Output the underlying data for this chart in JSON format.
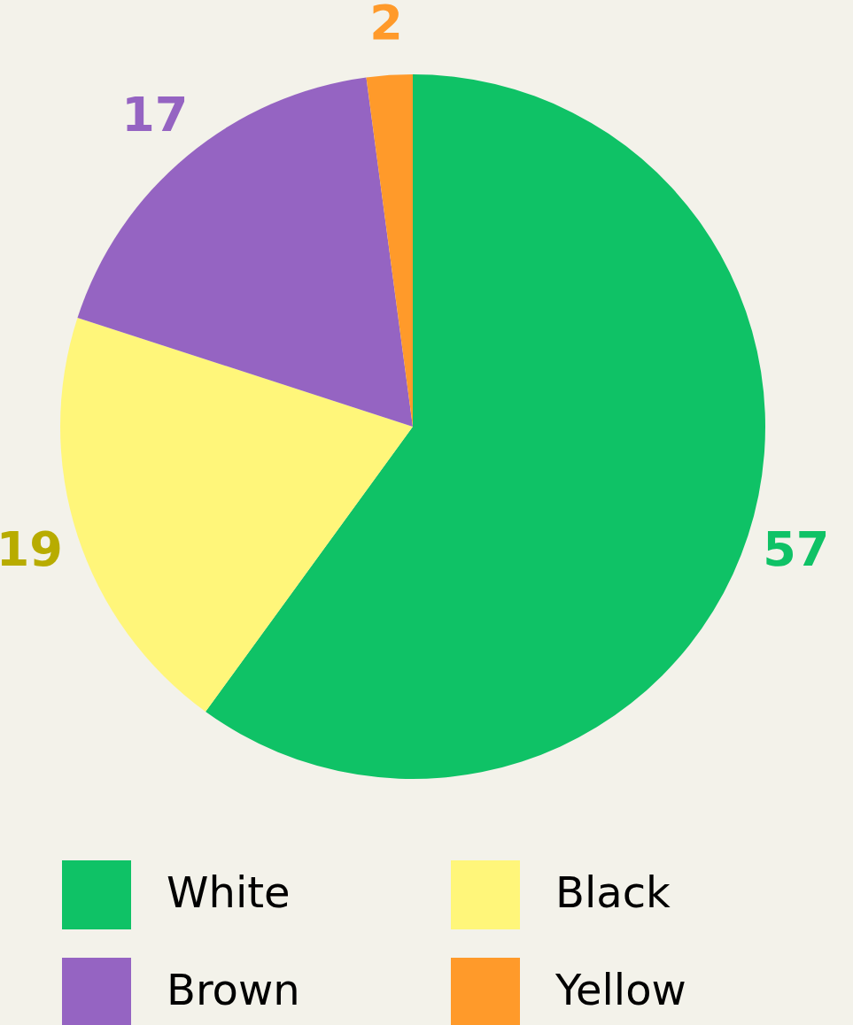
{
  "chart_data": {
    "type": "pie",
    "categories": [
      "White",
      "Black",
      "Brown",
      "Yellow"
    ],
    "values": [
      57,
      19,
      17,
      2
    ],
    "colors": [
      "#0fc266",
      "#fff67a",
      "#9564c2",
      "#ff9a2a"
    ],
    "data_labels": true,
    "legend": "bottom"
  }
}
